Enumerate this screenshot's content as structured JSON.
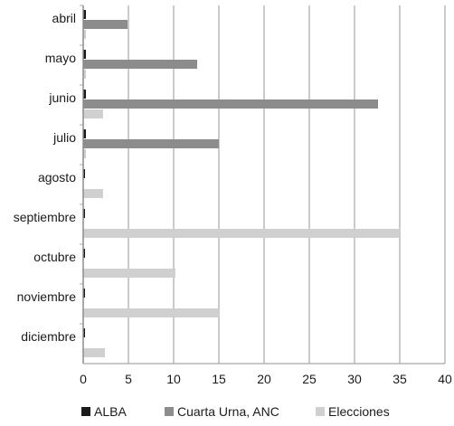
{
  "chart_data": {
    "type": "bar",
    "orientation": "horizontal",
    "categories": [
      "abril",
      "mayo",
      "junio",
      "julio",
      "agosto",
      "septiembre",
      "octubre",
      "noviembre",
      "diciembre"
    ],
    "series": [
      {
        "name": "ALBA",
        "values": [
          0.3,
          0.3,
          0.3,
          0.3,
          0.2,
          0.2,
          0.2,
          0.2,
          0.2
        ],
        "color": "#1a1a1a"
      },
      {
        "name": "Cuarta Urna, ANC",
        "values": [
          4.9,
          12.6,
          32.6,
          15.0,
          0,
          0,
          0,
          0,
          0
        ],
        "color": "#8c8c8c"
      },
      {
        "name": "Elecciones",
        "values": [
          0.3,
          0.3,
          2.2,
          0.3,
          2.2,
          35.0,
          10.2,
          15.1,
          2.4
        ],
        "color": "#d0d0d0"
      }
    ],
    "xlim": [
      0,
      40
    ],
    "xticks": [
      0,
      5,
      10,
      15,
      20,
      25,
      30,
      35,
      40
    ],
    "grid": true,
    "legend_position": "bottom"
  }
}
